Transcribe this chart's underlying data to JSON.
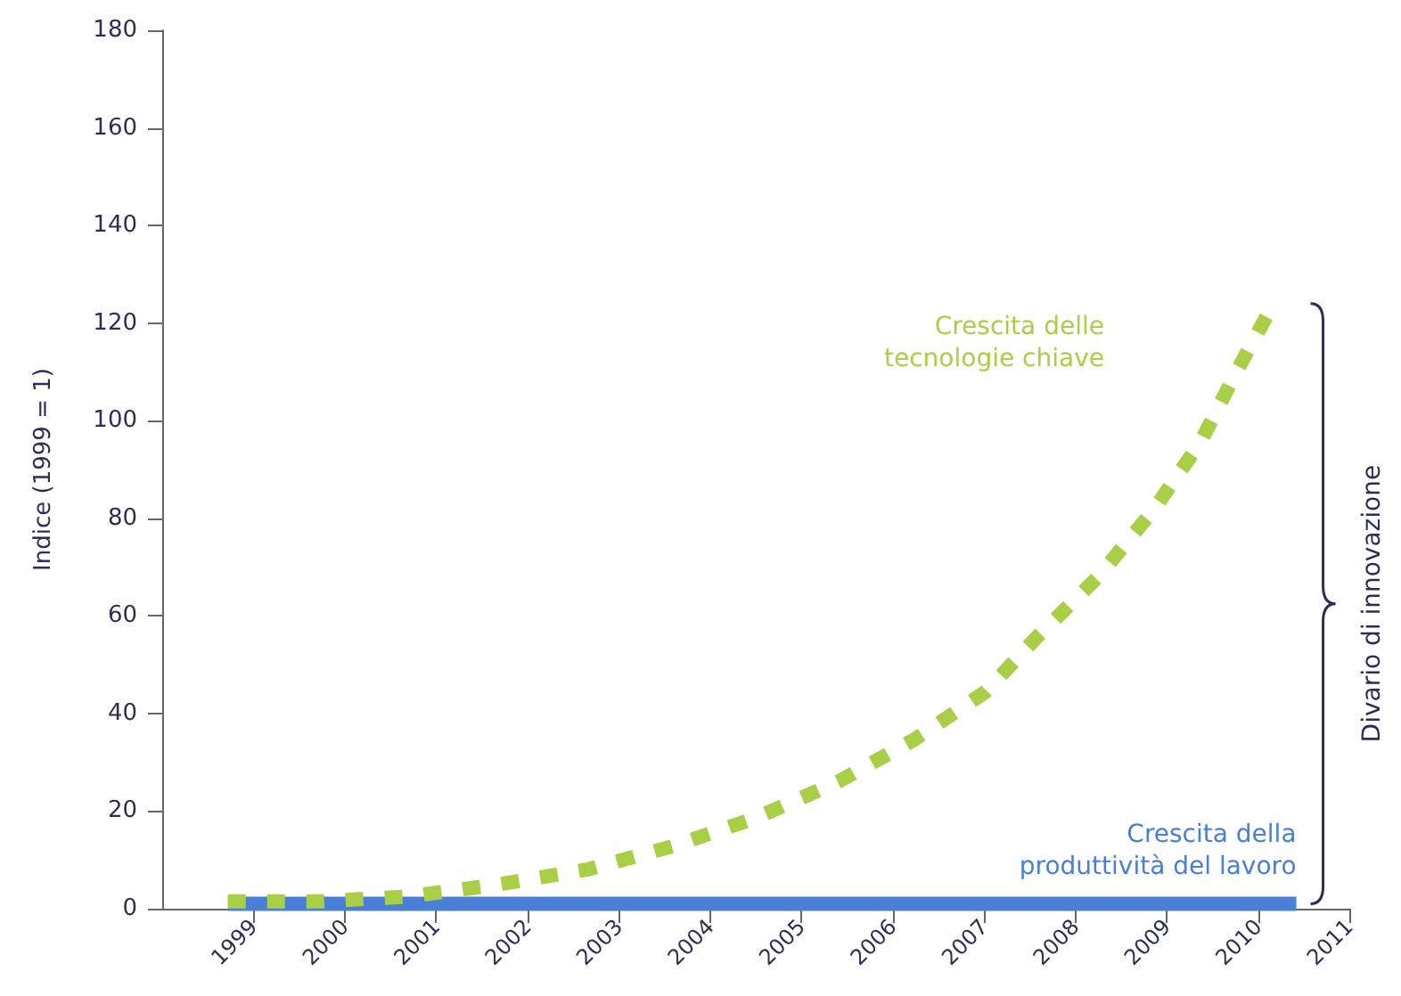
{
  "chart_data": {
    "type": "line",
    "ylabel": "Indice (1999 = 1)",
    "xlim": [
      1998,
      2011
    ],
    "xticks": [
      1999,
      2000,
      2001,
      2002,
      2003,
      2004,
      2005,
      2006,
      2007,
      2008,
      2009,
      2010,
      2011
    ],
    "ylim": [
      0,
      180
    ],
    "yticks": [
      0,
      20,
      40,
      60,
      80,
      100,
      120,
      140,
      160,
      180
    ],
    "grid": false,
    "legend": false,
    "marker": "none",
    "series": [
      {
        "name": "Crescita delle\ntecnologie chiave",
        "color": "#a8cf45",
        "line_style": "dashed",
        "x": [
          1998.72,
          1999.72,
          2000.7,
          2001.69,
          2002.65,
          2003.59,
          2004.5,
          2005.4,
          2006.24,
          2007.02,
          2007.57,
          2008.25,
          2008.86,
          2009.37,
          2009.78,
          2010.17
        ],
        "values": [
          1.5,
          1.5,
          2.5,
          5,
          8,
          12.8,
          18.6,
          26,
          34.7,
          44.5,
          55.5,
          68,
          81.8,
          95.6,
          110.6,
          124
        ]
      },
      {
        "name": "Crescita della\nproduttività del lavoro",
        "color": "#4a7fd8",
        "line_style": "solid",
        "x": [
          1998.72,
          2010.42
        ],
        "values": [
          1,
          1
        ]
      }
    ],
    "annotations": [
      "Divario di innovazione"
    ]
  }
}
